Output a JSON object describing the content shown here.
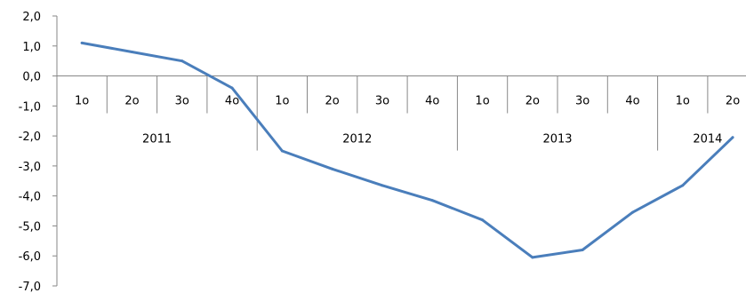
{
  "chart_data": {
    "type": "line",
    "title": "",
    "xlabel": "",
    "ylabel": "",
    "ylim": [
      -7.0,
      2.0
    ],
    "ytick_step": 1.0,
    "ytick_labels": [
      "2,0",
      "1,0",
      "0,0",
      "-1,0",
      "-2,0",
      "-3,0",
      "-4,0",
      "-5,0",
      "-6,0",
      "-7,0"
    ],
    "grid": false,
    "legend": "none",
    "categories": [
      {
        "quarter": "1o",
        "year": "2011"
      },
      {
        "quarter": "2o",
        "year": "2011"
      },
      {
        "quarter": "3o",
        "year": "2011"
      },
      {
        "quarter": "4o",
        "year": "2011"
      },
      {
        "quarter": "1o",
        "year": "2012"
      },
      {
        "quarter": "2o",
        "year": "2012"
      },
      {
        "quarter": "3o",
        "year": "2012"
      },
      {
        "quarter": "4o",
        "year": "2012"
      },
      {
        "quarter": "1o",
        "year": "2013"
      },
      {
        "quarter": "2o",
        "year": "2013"
      },
      {
        "quarter": "3o",
        "year": "2013"
      },
      {
        "quarter": "4o",
        "year": "2013"
      },
      {
        "quarter": "1o",
        "year": "2014"
      },
      {
        "quarter": "2o",
        "year": "2014"
      }
    ],
    "years": [
      "2011",
      "2012",
      "2013",
      "2014"
    ],
    "series": [
      {
        "color": "#4a7ebb",
        "values": [
          1.1,
          0.8,
          0.5,
          -0.4,
          -2.5,
          -3.1,
          -3.65,
          -4.15,
          -4.8,
          -6.05,
          -5.8,
          -4.55,
          -3.65,
          -2.05
        ]
      }
    ]
  }
}
